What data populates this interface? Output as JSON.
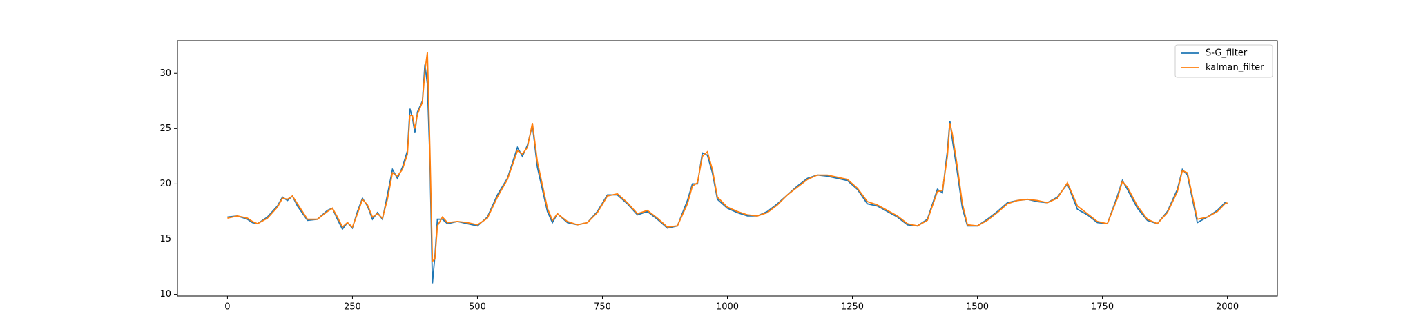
{
  "chart_data": {
    "type": "line",
    "x": [
      0,
      20,
      40,
      50,
      60,
      80,
      100,
      110,
      120,
      130,
      140,
      160,
      180,
      200,
      210,
      220,
      230,
      240,
      250,
      260,
      270,
      280,
      290,
      300,
      310,
      320,
      330,
      340,
      350,
      360,
      365,
      370,
      375,
      380,
      390,
      395,
      400,
      405,
      410,
      415,
      420,
      430,
      440,
      460,
      480,
      500,
      520,
      540,
      560,
      580,
      590,
      600,
      610,
      620,
      640,
      650,
      660,
      680,
      700,
      720,
      740,
      760,
      780,
      800,
      820,
      840,
      860,
      880,
      900,
      920,
      930,
      940,
      950,
      960,
      970,
      980,
      1000,
      1020,
      1040,
      1060,
      1080,
      1100,
      1120,
      1140,
      1160,
      1180,
      1200,
      1220,
      1240,
      1260,
      1280,
      1300,
      1320,
      1340,
      1360,
      1380,
      1400,
      1420,
      1430,
      1440,
      1445,
      1450,
      1460,
      1470,
      1480,
      1500,
      1520,
      1540,
      1560,
      1580,
      1600,
      1620,
      1640,
      1660,
      1680,
      1700,
      1720,
      1740,
      1760,
      1780,
      1790,
      1800,
      1820,
      1840,
      1860,
      1880,
      1900,
      1910,
      1920,
      1940,
      1960,
      1980,
      1995,
      2000
    ],
    "series": [
      {
        "name": "S-G_filter",
        "color": "#1f77b4",
        "values": [
          17.0,
          17.1,
          16.8,
          16.5,
          16.4,
          17.0,
          18.0,
          18.8,
          18.5,
          18.9,
          18.0,
          16.7,
          16.8,
          17.6,
          17.8,
          16.8,
          15.9,
          16.5,
          16.0,
          17.5,
          18.7,
          18.0,
          16.8,
          17.4,
          16.8,
          19.0,
          21.3,
          20.5,
          21.5,
          23.0,
          26.8,
          26.0,
          24.6,
          26.5,
          27.5,
          30.8,
          29.0,
          22.0,
          11.0,
          13.5,
          16.8,
          16.8,
          16.4,
          16.6,
          16.4,
          16.2,
          17.0,
          19.0,
          20.5,
          23.3,
          22.5,
          23.5,
          25.3,
          21.5,
          17.5,
          16.5,
          17.3,
          16.5,
          16.3,
          16.5,
          17.5,
          19.0,
          19.0,
          18.2,
          17.2,
          17.5,
          16.8,
          16.0,
          16.2,
          18.5,
          20.0,
          20.0,
          22.8,
          22.6,
          21.0,
          18.6,
          17.8,
          17.4,
          17.1,
          17.1,
          17.5,
          18.2,
          19.0,
          19.8,
          20.5,
          20.8,
          20.7,
          20.5,
          20.3,
          19.5,
          18.2,
          18.0,
          17.5,
          17.0,
          16.3,
          16.2,
          16.8,
          19.5,
          19.2,
          23.0,
          25.7,
          24.0,
          21.0,
          17.8,
          16.2,
          16.2,
          16.8,
          17.5,
          18.3,
          18.5,
          18.6,
          18.4,
          18.3,
          18.8,
          20.0,
          17.7,
          17.2,
          16.5,
          16.4,
          18.9,
          20.3,
          19.5,
          17.8,
          16.7,
          16.4,
          17.5,
          19.5,
          21.3,
          20.8,
          16.5,
          17.0,
          17.6,
          18.3,
          18.2
        ]
      },
      {
        "name": "kalman_filter",
        "color": "#ff7f0e",
        "values": [
          16.9,
          17.1,
          16.9,
          16.6,
          16.4,
          16.9,
          17.9,
          18.7,
          18.6,
          18.9,
          18.2,
          16.8,
          16.8,
          17.5,
          17.8,
          17.0,
          16.1,
          16.5,
          16.1,
          17.3,
          18.6,
          18.1,
          17.0,
          17.3,
          16.9,
          18.6,
          21.0,
          20.7,
          21.3,
          22.7,
          26.2,
          26.2,
          25.0,
          26.3,
          27.4,
          30.2,
          31.9,
          23.0,
          13.0,
          13.2,
          16.2,
          17.0,
          16.5,
          16.6,
          16.5,
          16.3,
          16.9,
          18.8,
          20.4,
          23.0,
          22.7,
          23.3,
          25.5,
          22.0,
          17.8,
          16.7,
          17.3,
          16.6,
          16.3,
          16.5,
          17.4,
          18.9,
          19.1,
          18.3,
          17.3,
          17.6,
          16.9,
          16.1,
          16.2,
          18.2,
          19.8,
          20.1,
          22.5,
          22.9,
          21.3,
          18.8,
          17.9,
          17.5,
          17.2,
          17.1,
          17.4,
          18.1,
          19.0,
          19.7,
          20.4,
          20.8,
          20.8,
          20.6,
          20.4,
          19.6,
          18.4,
          18.1,
          17.6,
          17.1,
          16.4,
          16.2,
          16.7,
          19.3,
          19.4,
          22.5,
          25.5,
          24.5,
          21.5,
          18.2,
          16.3,
          16.2,
          16.7,
          17.4,
          18.2,
          18.5,
          18.6,
          18.5,
          18.3,
          18.7,
          20.1,
          18.0,
          17.3,
          16.6,
          16.4,
          18.7,
          20.2,
          19.7,
          18.0,
          16.8,
          16.4,
          17.4,
          19.3,
          21.2,
          21.0,
          16.8,
          17.0,
          17.5,
          18.2,
          18.3
        ]
      }
    ],
    "xlim": [
      -100,
      2100
    ],
    "ylim": [
      9.85,
      32.95
    ],
    "xticks": [
      0,
      250,
      500,
      750,
      1000,
      1250,
      1500,
      1750,
      2000
    ],
    "yticks": [
      10,
      15,
      20,
      25,
      30
    ],
    "legend": "upper right"
  }
}
